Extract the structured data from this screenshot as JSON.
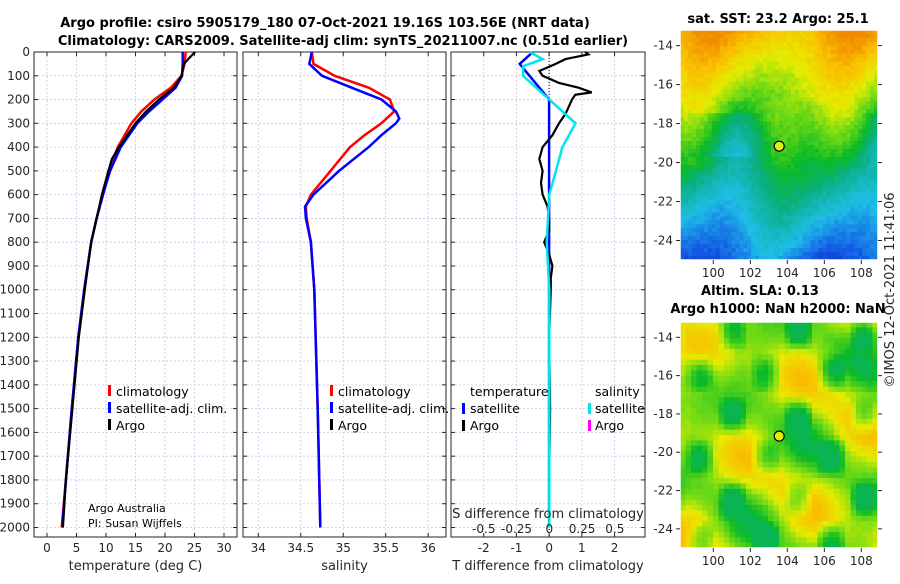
{
  "title_line1": "Argo profile: csiro 5905179_180 07-Oct-2021 19.16S 103.56E (NRT data)",
  "title_line2": "Climatology: CARS2009. Satellite-adj clim: synTS_20211007.nc (0.51d earlier)",
  "credit_line1": "Argo Australia",
  "credit_line2": "PI: Susan Wijffels",
  "copyright": "©IMOS 12-Oct-2021 11:41:06",
  "colors": {
    "climatology": "#ff0000",
    "satellite": "#0000ff",
    "argo": "#000000",
    "sal_satellite": "#00e5ee",
    "sal_argo": "#ff00ff"
  },
  "chart_data": [
    {
      "type": "line",
      "name": "temperature",
      "xlabel": "temperature (deg C)",
      "ylabel": "depth",
      "xlim": [
        -2.2,
        32.2
      ],
      "ylim": [
        2040,
        0
      ],
      "xticks": [
        0,
        5,
        10,
        15,
        20,
        25,
        30
      ],
      "yticks": [
        0,
        100,
        200,
        300,
        400,
        500,
        600,
        700,
        800,
        900,
        1000,
        1100,
        1200,
        1300,
        1400,
        1500,
        1600,
        1700,
        1800,
        1900,
        2000
      ],
      "grid": true,
      "legend": [
        "climatology",
        "satellite-adj. clim.",
        "Argo"
      ],
      "series": [
        {
          "name": "climatology",
          "depth": [
            0,
            50,
            100,
            150,
            200,
            250,
            300,
            400,
            500,
            600,
            700,
            800,
            1000,
            1200,
            1500,
            1800,
            2000
          ],
          "values": [
            23.5,
            23.3,
            22.8,
            21.0,
            18.2,
            16.0,
            14.3,
            12.0,
            10.5,
            9.5,
            8.4,
            7.5,
            6.3,
            5.3,
            4.2,
            3.2,
            2.5
          ]
        },
        {
          "name": "satellite-adj. clim.",
          "depth": [
            0,
            50,
            100,
            150,
            200,
            250,
            300,
            400,
            500,
            600,
            700,
            800,
            1000,
            1200,
            1500,
            1800,
            2000
          ],
          "values": [
            23.0,
            23.0,
            22.9,
            21.8,
            19.6,
            17.3,
            15.3,
            12.5,
            10.7,
            9.5,
            8.4,
            7.5,
            6.3,
            5.3,
            4.2,
            3.2,
            2.6
          ]
        },
        {
          "name": "Argo",
          "depth": [
            0,
            20,
            50,
            100,
            150,
            200,
            250,
            300,
            400,
            450,
            500,
            600,
            700,
            800,
            1000,
            1200,
            1500,
            1800,
            2000
          ],
          "values": [
            25.1,
            24.3,
            23.2,
            22.8,
            21.5,
            19.0,
            16.8,
            15.0,
            12.2,
            11.0,
            10.4,
            9.3,
            8.4,
            7.5,
            6.4,
            5.4,
            4.3,
            3.2,
            2.7
          ]
        }
      ]
    },
    {
      "type": "line",
      "name": "salinity",
      "xlabel": "salinity",
      "xlim": [
        33.82,
        36.21
      ],
      "ylim": [
        2040,
        0
      ],
      "xticks": [
        34,
        34.5,
        35,
        35.5,
        36
      ],
      "xtick_labels": [
        "34",
        "34.5",
        "35",
        "35.5",
        "36"
      ],
      "grid": true,
      "legend": [
        "climatology",
        "satellite-adj. clim.",
        "Argo"
      ],
      "series": [
        {
          "name": "climatology",
          "depth": [
            0,
            50,
            100,
            150,
            200,
            250,
            300,
            350,
            400,
            500,
            600,
            650,
            700,
            800,
            1000,
            1500,
            2000
          ],
          "values": [
            34.63,
            34.65,
            34.9,
            35.3,
            35.55,
            35.6,
            35.45,
            35.25,
            35.08,
            34.85,
            34.62,
            34.56,
            34.57,
            34.62,
            34.66,
            34.7,
            34.73
          ]
        },
        {
          "name": "satellite-adj. clim.",
          "depth": [
            0,
            50,
            100,
            150,
            200,
            250,
            280,
            300,
            350,
            400,
            500,
            600,
            650,
            700,
            800,
            1000,
            1500,
            2000
          ],
          "values": [
            34.63,
            34.6,
            34.75,
            35.1,
            35.45,
            35.62,
            35.66,
            35.62,
            35.45,
            35.3,
            34.95,
            34.65,
            34.55,
            34.56,
            34.62,
            34.66,
            34.7,
            34.73
          ]
        }
      ]
    },
    {
      "type": "line",
      "name": "difference",
      "xlabel": "T difference from climatology",
      "x2label": "S difference from climatology",
      "xlim": [
        -3,
        2.93
      ],
      "x2lim": [
        -0.75,
        0.73
      ],
      "ylim": [
        2040,
        0
      ],
      "xticks": [
        -2,
        -1,
        0,
        1,
        2
      ],
      "x2ticks": [
        -0.5,
        -0.25,
        0,
        0.25,
        0.5
      ],
      "x2tick_labels": [
        "-0.5",
        "-0.25",
        "0",
        "0.25",
        "0.5"
      ],
      "grid": true,
      "legend_temperature_title": "temperature",
      "legend_salinity_title": "salinity",
      "legend_temperature": [
        "satellite",
        "Argo"
      ],
      "legend_salinity": [
        "satellite",
        "Argo"
      ],
      "series": [
        {
          "name": "T satellite",
          "axis": "T",
          "depth": [
            0,
            50,
            100,
            200,
            300,
            400,
            600,
            1000,
            2000
          ],
          "values": [
            -0.5,
            -0.9,
            -0.6,
            0.0,
            0.0,
            0.0,
            0.0,
            0.0,
            0.0
          ]
        },
        {
          "name": "T Argo",
          "axis": "T",
          "depth": [
            0,
            10,
            30,
            50,
            80,
            100,
            130,
            150,
            170,
            180,
            200,
            230,
            260,
            300,
            350,
            400,
            450,
            500,
            550,
            600,
            650,
            700,
            750,
            800,
            850,
            900,
            950,
            1000,
            1200,
            1500,
            1800,
            2000
          ],
          "values": [
            1.1,
            1.2,
            0.5,
            0.2,
            -0.3,
            -0.2,
            0.3,
            0.9,
            1.3,
            0.8,
            0.7,
            0.6,
            0.5,
            0.3,
            0.1,
            -0.2,
            -0.3,
            -0.2,
            -0.25,
            -0.2,
            -0.05,
            0.0,
            0.0,
            -0.15,
            0.0,
            0.1,
            0.05,
            0.05,
            0.0,
            0.03,
            0.0,
            0.0
          ]
        },
        {
          "name": "S satellite",
          "axis": "S",
          "depth": [
            0,
            30,
            60,
            100,
            150,
            200,
            250,
            300,
            350,
            400,
            500,
            600,
            800,
            1000,
            1500,
            2000
          ],
          "values": [
            -0.15,
            -0.05,
            -0.2,
            -0.2,
            -0.1,
            0.0,
            0.1,
            0.2,
            0.15,
            0.1,
            0.05,
            0.0,
            -0.02,
            0.0,
            0.0,
            0.0
          ]
        }
      ]
    },
    {
      "type": "heatmap",
      "name": "sst-map",
      "title": "sat. SST: 23.2 Argo: 25.1",
      "xlim": [
        98.2,
        108.9
      ],
      "ylim": [
        -25.0,
        -13.2
      ],
      "xticks": [
        100,
        102,
        104,
        106,
        108
      ],
      "yticks": [
        -14,
        -16,
        -18,
        -20,
        -22,
        -24
      ],
      "marker": {
        "lon": 103.56,
        "lat": -19.16
      }
    },
    {
      "type": "heatmap",
      "name": "sla-map",
      "title": "Altim. SLA: 0.13",
      "subtitle": "Argo h1000: NaN h2000: NaN",
      "xlim": [
        98.2,
        108.9
      ],
      "ylim": [
        -25.0,
        -13.2
      ],
      "xticks": [
        100,
        102,
        104,
        106,
        108
      ],
      "yticks": [
        -14,
        -16,
        -18,
        -20,
        -22,
        -24
      ],
      "marker": {
        "lon": 103.56,
        "lat": -19.16
      }
    }
  ]
}
